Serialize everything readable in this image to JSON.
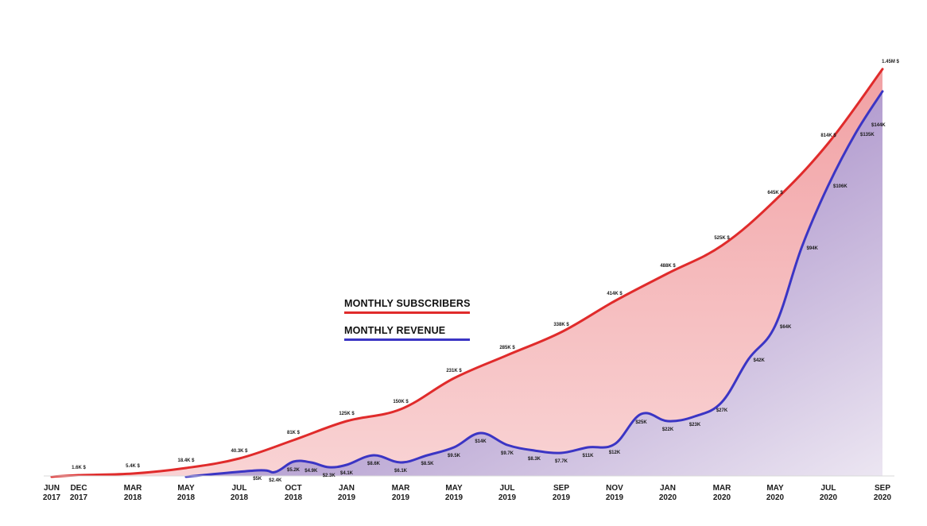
{
  "chart_data": {
    "type": "area",
    "title": "",
    "xlabel": "",
    "ylabel": "",
    "legend_position": "center-left",
    "grid": false,
    "x_ticks": [
      {
        "month": "JUN",
        "year": "2017",
        "date": "2017-06"
      },
      {
        "month": "DEC",
        "year": "2017",
        "date": "2017-12"
      },
      {
        "month": "MAR",
        "year": "2018",
        "date": "2018-03"
      },
      {
        "month": "MAY",
        "year": "2018",
        "date": "2018-05"
      },
      {
        "month": "JUL",
        "year": "2018",
        "date": "2018-07"
      },
      {
        "month": "OCT",
        "year": "2018",
        "date": "2018-10"
      },
      {
        "month": "JAN",
        "year": "2019",
        "date": "2019-01"
      },
      {
        "month": "MAR",
        "year": "2019",
        "date": "2019-03"
      },
      {
        "month": "MAY",
        "year": "2019",
        "date": "2019-05"
      },
      {
        "month": "JUL",
        "year": "2019",
        "date": "2019-07"
      },
      {
        "month": "SEP",
        "year": "2019",
        "date": "2019-09"
      },
      {
        "month": "NOV",
        "year": "2019",
        "date": "2019-11"
      },
      {
        "month": "JAN",
        "year": "2020",
        "date": "2020-01"
      },
      {
        "month": "MAR",
        "year": "2020",
        "date": "2020-03"
      },
      {
        "month": "MAY",
        "year": "2020",
        "date": "2020-05"
      },
      {
        "month": "JUL",
        "year": "2020",
        "date": "2020-07"
      },
      {
        "month": "SEP",
        "year": "2020",
        "date": "2020-09"
      }
    ],
    "series": [
      {
        "name": "MONTHLY SUBSCRIBERS",
        "color": "#e02b2b",
        "fill_top": "#f1a1a4",
        "fill_bottom": "#f9d3d4",
        "points": [
          {
            "x": "2017-06",
            "y": 0
          },
          {
            "x": "2017-12",
            "y": 1600,
            "label": "1.6K $"
          },
          {
            "x": "2018-03",
            "y": 5400,
            "label": "5.4K $"
          },
          {
            "x": "2018-05",
            "y": 18400,
            "label": "18.4K $"
          },
          {
            "x": "2018-07",
            "y": 40300,
            "label": "40.3K $"
          },
          {
            "x": "2018-10",
            "y": 81000,
            "label": "81K $"
          },
          {
            "x": "2019-01",
            "y": 125000,
            "label": "125K $"
          },
          {
            "x": "2019-03",
            "y": 150000,
            "label": "150K $"
          },
          {
            "x": "2019-05",
            "y": 231000,
            "label": "231K $"
          },
          {
            "x": "2019-07",
            "y": 285000,
            "label": "285K $"
          },
          {
            "x": "2019-09",
            "y": 338000,
            "label": "338K $"
          },
          {
            "x": "2019-11",
            "y": 414000,
            "label": "414K $"
          },
          {
            "x": "2020-01",
            "y": 488000,
            "label": "488K $"
          },
          {
            "x": "2020-03",
            "y": 525000,
            "label": "525K $"
          },
          {
            "x": "2020-05",
            "y": 645000,
            "label": "645K $"
          },
          {
            "x": "2020-07",
            "y": 814000,
            "label": "814K $"
          },
          {
            "x": "2020-09",
            "y": 1450000,
            "label": "1.45M $"
          }
        ]
      },
      {
        "name": "MONTHLY REVENUE",
        "color": "#3b35c4",
        "fill_top": "#7b55ad",
        "fill_bottom": "#ece6f2",
        "points": [
          {
            "x": "2018-05",
            "y": 0
          },
          {
            "x": "2018-08",
            "y": 5000,
            "label": "$5K"
          },
          {
            "x": "2018-09",
            "y": 2400,
            "label": "$2.4K"
          },
          {
            "x": "2018-10",
            "y": 5200,
            "label": "$5.2K"
          },
          {
            "x": "2018-11",
            "y": 4900,
            "label": "$4.9K"
          },
          {
            "x": "2018-12",
            "y": 2300,
            "label": "$2.3K"
          },
          {
            "x": "2019-01",
            "y": 4100,
            "label": "$4.1K"
          },
          {
            "x": "2019-02",
            "y": 8600,
            "label": "$8.6K"
          },
          {
            "x": "2019-03",
            "y": 6100,
            "label": "$6.1K"
          },
          {
            "x": "2019-04",
            "y": 8500,
            "label": "$8.5K"
          },
          {
            "x": "2019-05",
            "y": 9500,
            "label": "$9.5K"
          },
          {
            "x": "2019-06",
            "y": 14000,
            "label": "$14K"
          },
          {
            "x": "2019-07",
            "y": 9700,
            "label": "$9.7K"
          },
          {
            "x": "2019-08",
            "y": 8300,
            "label": "$8.3K"
          },
          {
            "x": "2019-09",
            "y": 7700,
            "label": "$7.7K"
          },
          {
            "x": "2019-10",
            "y": 11000,
            "label": "$11K"
          },
          {
            "x": "2019-11",
            "y": 12000,
            "label": "$12K"
          },
          {
            "x": "2019-12",
            "y": 25000,
            "label": "$25K"
          },
          {
            "x": "2020-01",
            "y": 22000,
            "label": "$22K"
          },
          {
            "x": "2020-02",
            "y": 23000,
            "label": "$23K"
          },
          {
            "x": "2020-03",
            "y": 27000,
            "label": "$27K"
          },
          {
            "x": "2020-04",
            "y": 42000,
            "label": "$42K"
          },
          {
            "x": "2020-05",
            "y": 64000,
            "label": "$64K"
          },
          {
            "x": "2020-06",
            "y": 94000,
            "label": "$94K"
          },
          {
            "x": "2020-07",
            "y": 106000,
            "label": "$106K"
          },
          {
            "x": "2020-08",
            "y": 135000,
            "label": "$135K"
          },
          {
            "x": "2020-09",
            "y": 144000,
            "label": "$144K"
          }
        ]
      }
    ]
  }
}
